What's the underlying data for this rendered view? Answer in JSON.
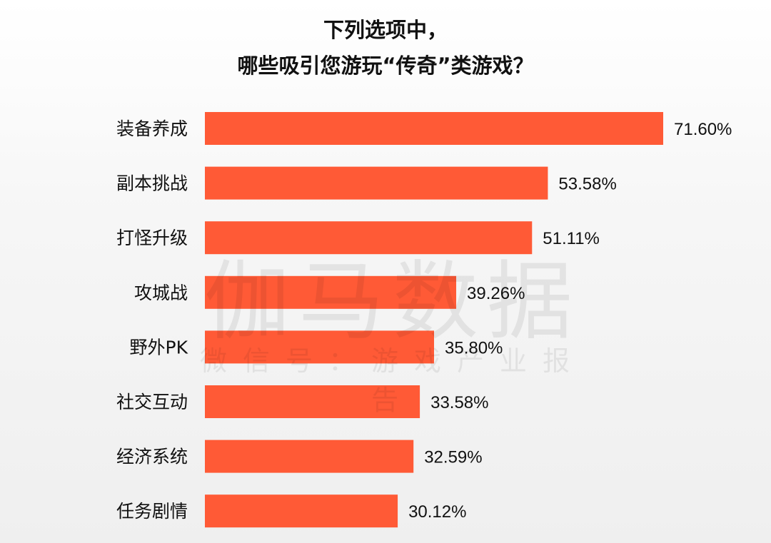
{
  "chart_data": {
    "type": "bar",
    "orientation": "horizontal",
    "title": "下列选项中，\n哪些吸引您游玩“传奇”类游戏？",
    "title_lines": [
      "下列选项中，",
      "哪些吸引您游玩“传奇”类游戏？"
    ],
    "categories": [
      "装备养成",
      "副本挑战",
      "打怪升级",
      "攻城战",
      "野外PK",
      "社交互动",
      "经济系统",
      "任务剧情"
    ],
    "values": [
      71.6,
      53.58,
      51.11,
      39.26,
      35.8,
      33.58,
      32.59,
      30.12
    ],
    "value_labels": [
      "71.60%",
      "53.58%",
      "51.11%",
      "39.26%",
      "35.80%",
      "33.58%",
      "32.59%",
      "30.12%"
    ],
    "unit": "%",
    "bar_color": "#FF5A36",
    "grid": false,
    "legend": "none"
  },
  "watermark": {
    "main": "伽马数据",
    "sub": "微信号：游戏产业报告"
  }
}
